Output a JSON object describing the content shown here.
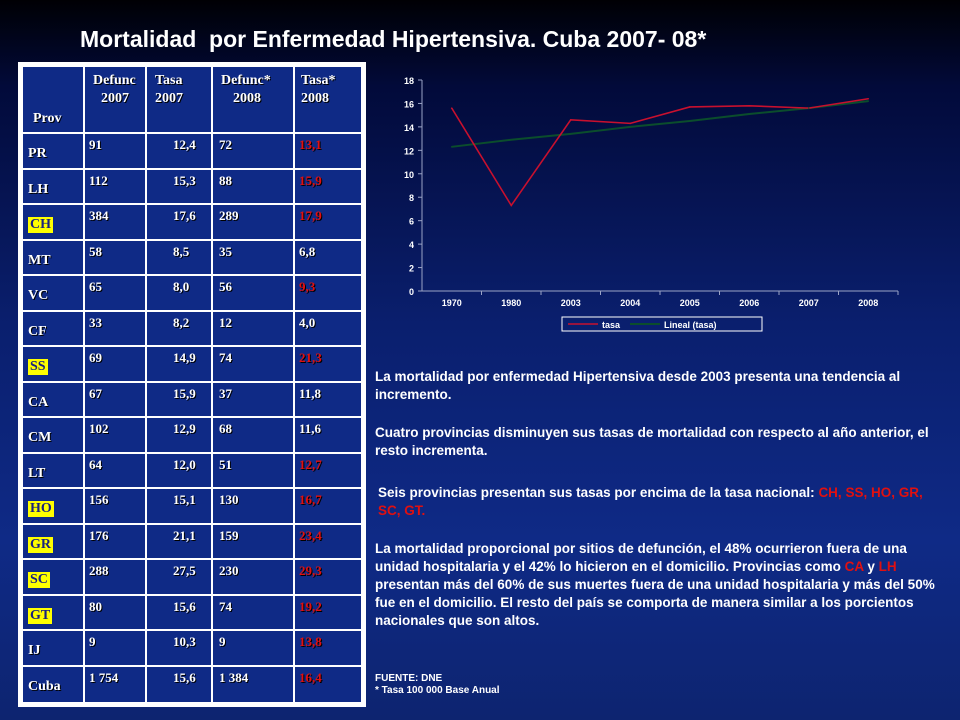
{
  "title": "Mortalidad  por Enfermedad Hipertensiva. Cuba 2007- 08*",
  "table": {
    "headers": {
      "prov": "Prov",
      "defunc2007_a": "Defunc",
      "defunc2007_b": "2007",
      "tasa2007_a": "Tasa",
      "tasa2007_b": "2007",
      "defunc2008_a": "Defunc*",
      "defunc2008_b": "2008",
      "tasa2008_a": "Tasa*",
      "tasa2008_b": "2008"
    },
    "rows": [
      {
        "prov": "PR",
        "d07": "91",
        "t07": "12,4",
        "d08": "72",
        "t08": "13,1",
        "hl": false,
        "red": true
      },
      {
        "prov": "LH",
        "d07": "112",
        "t07": "15,3",
        "d08": "88",
        "t08": "15,9",
        "hl": false,
        "red": true
      },
      {
        "prov": "CH",
        "d07": "384",
        "t07": "17,6",
        "d08": "289",
        "t08": "17,9",
        "hl": true,
        "red": true
      },
      {
        "prov": "MT",
        "d07": "58",
        "t07": "8,5",
        "d08": "35",
        "t08": "6,8",
        "hl": false,
        "red": false
      },
      {
        "prov": "VC",
        "d07": "65",
        "t07": "8,0",
        "d08": "56",
        "t08": "9,3",
        "hl": false,
        "red": true
      },
      {
        "prov": "CF",
        "d07": "33",
        "t07": "8,2",
        "d08": "12",
        "t08": "4,0",
        "hl": false,
        "red": false
      },
      {
        "prov": "SS",
        "d07": "69",
        "t07": "14,9",
        "d08": "74",
        "t08": "21,3",
        "hl": true,
        "red": true
      },
      {
        "prov": "CA",
        "d07": "67",
        "t07": "15,9",
        "d08": "37",
        "t08": "11,8",
        "hl": false,
        "red": false
      },
      {
        "prov": "CM",
        "d07": "102",
        "t07": "12,9",
        "d08": "68",
        "t08": "11,6",
        "hl": false,
        "red": false
      },
      {
        "prov": "LT",
        "d07": "64",
        "t07": "12,0",
        "d08": "51",
        "t08": "12,7",
        "hl": false,
        "red": true
      },
      {
        "prov": "HO",
        "d07": "156",
        "t07": "15,1",
        "d08": "130",
        "t08": "16,7",
        "hl": true,
        "red": true
      },
      {
        "prov": "GR",
        "d07": "176",
        "t07": "21,1",
        "d08": "159",
        "t08": "23,4",
        "hl": true,
        "red": true
      },
      {
        "prov": "SC",
        "d07": "288",
        "t07": "27,5",
        "d08": "230",
        "t08": "29,3",
        "hl": true,
        "red": true
      },
      {
        "prov": "GT",
        "d07": "80",
        "t07": "15,6",
        "d08": "74",
        "t08": "19,2",
        "hl": true,
        "red": true
      },
      {
        "prov": "IJ",
        "d07": "9",
        "t07": "10,3",
        "d08": "9",
        "t08": "13,8",
        "hl": false,
        "red": true
      },
      {
        "prov": "Cuba",
        "d07": "1 754",
        "t07": "15,6",
        "d08": "1 384",
        "t08": "16,4",
        "hl": false,
        "red": true
      }
    ]
  },
  "chart_data": {
    "type": "line",
    "categories": [
      "1970",
      "1980",
      "2003",
      "2004",
      "2005",
      "2006",
      "2007",
      "2008"
    ],
    "series": [
      {
        "name": "tasa",
        "values": [
          15.6,
          7.3,
          14.6,
          14.3,
          15.7,
          15.8,
          15.6,
          16.4
        ],
        "color": "#c8102e"
      },
      {
        "name": "Lineal (tasa)",
        "values": [
          12.3,
          12.9,
          13.4,
          14.0,
          14.5,
          15.1,
          15.6,
          16.2
        ],
        "color": "#0b4d2c"
      }
    ],
    "ylim": [
      0,
      18
    ],
    "yticks": [
      "0",
      "2",
      "4",
      "6",
      "8",
      "10",
      "12",
      "14",
      "16",
      "18"
    ],
    "grid": false,
    "legend_position": "bottom"
  },
  "text": {
    "p1": "La mortalidad por enfermedad Hipertensiva desde 2003 presenta una tendencia al incremento.",
    "p2": "Cuatro provincias disminuyen sus tasas de mortalidad con respecto al año anterior, el resto incrementa.",
    "p3_a": "Seis provincias presentan sus tasas por encima de la tasa nacional: ",
    "p3_b": "CH, SS, HO, GR, SC, GT.",
    "p4_a": "La mortalidad proporcional por sitios de defunción, el 48% ocurrieron fuera de una unidad hospitalaria y el 42% lo  hicieron en el domicilio. Provincias como ",
    "p4_ca": "CA",
    "p4_y": " y ",
    "p4_lh": "LH",
    "p4_b": " presentan más del 60% de sus muertes fuera de una unidad hospitalaria y más del 50% fue en el domicilio. El resto del país se comporta de manera similar a los porcientos nacionales que son altos.",
    "foot1": "FUENTE: DNE",
    "foot2": "* Tasa 100 000 Base Anual"
  }
}
